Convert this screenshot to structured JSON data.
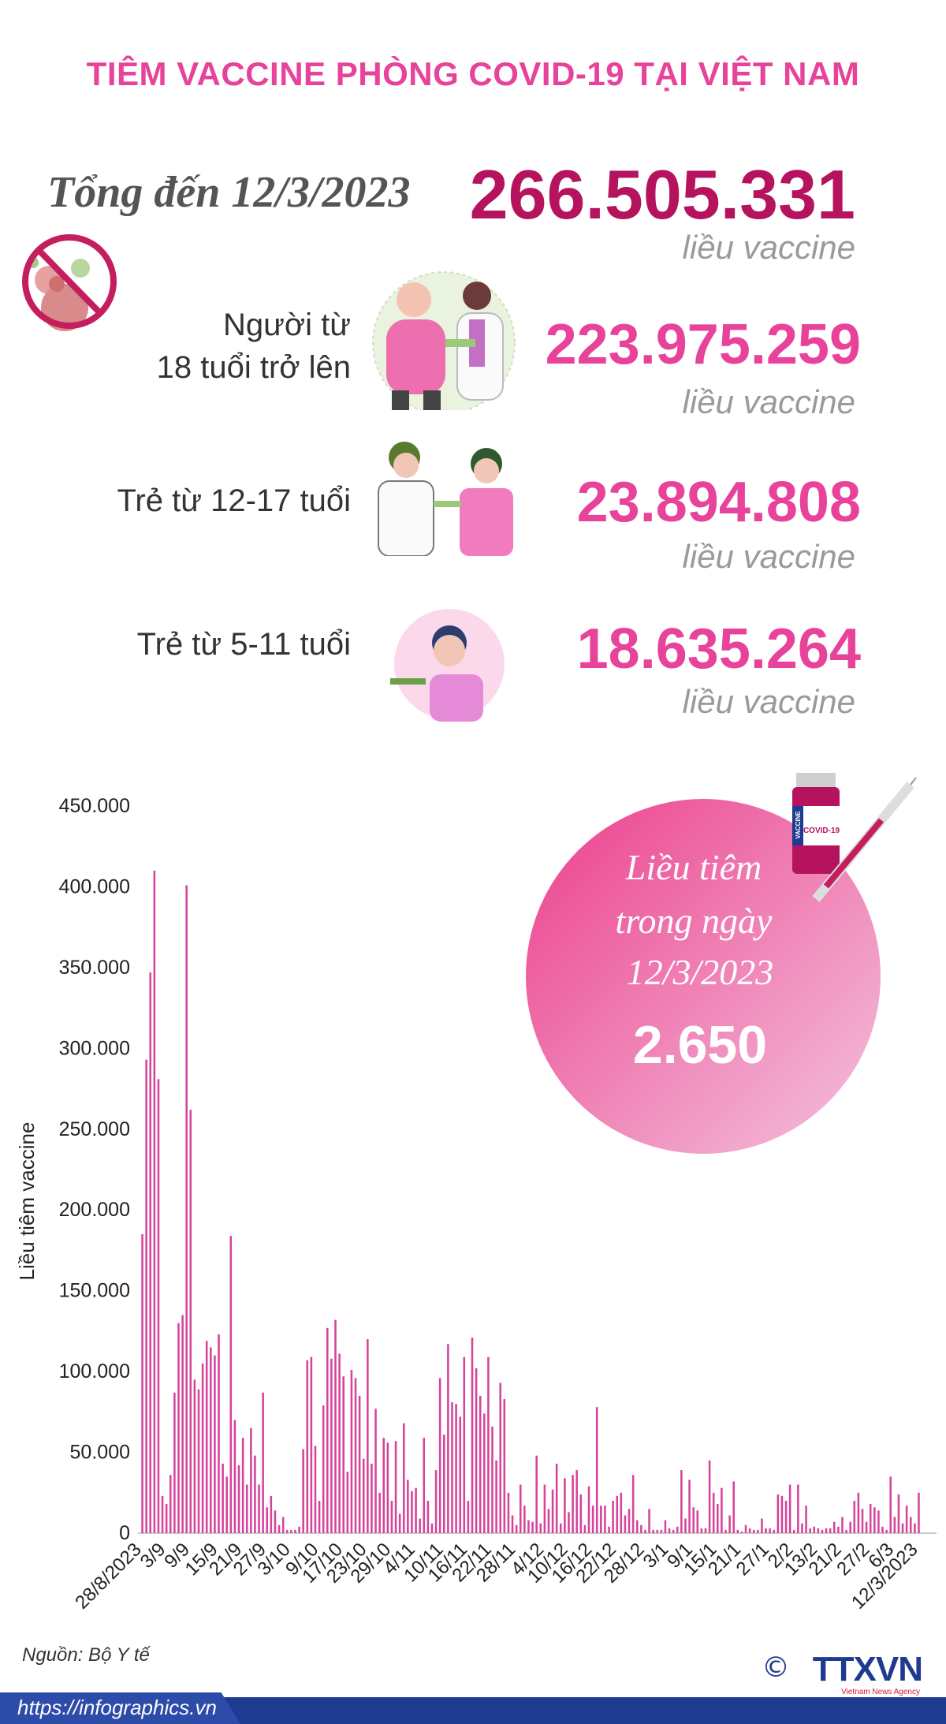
{
  "header": {
    "title": "TIÊM VACCINE PHÒNG COVID-19 TẠI VIỆT NAM"
  },
  "total": {
    "label": "Tổng đến 12/3/2023",
    "value": "266.505.331",
    "unit": "liều vaccine"
  },
  "groups": [
    {
      "label_line1": "Người từ",
      "label_line2": "18 tuổi trở lên",
      "value": "223.975.259",
      "unit": "liều vaccine"
    },
    {
      "label_line1": "Trẻ từ 12-17 tuổi",
      "label_line2": "",
      "value": "23.894.808",
      "unit": "liều vaccine"
    },
    {
      "label_line1": "Trẻ từ 5-11 tuổi",
      "label_line2": "",
      "value": "18.635.264",
      "unit": "liều vaccine"
    }
  ],
  "daily": {
    "line1": "Liều tiêm",
    "line2": "trong ngày",
    "line3": "12/3/2023",
    "value": "2.650",
    "vial_text": "COVID-19",
    "vial_side": "VACCINE"
  },
  "footer": {
    "source": "Nguồn: Bộ Y tế",
    "url": "https://infographics.vn",
    "brand": "TTXVN",
    "brand_sub": "Vietnam News Agency",
    "copyright": "©"
  },
  "colors": {
    "accent": "#e8439a",
    "dark_accent": "#b5135e",
    "bar": "#d6439a",
    "footer": "#1f3b8f"
  },
  "icons": [
    "no-virus-icon",
    "elderly-vaccination-icon",
    "teen-vaccination-icon",
    "child-vaccination-icon",
    "vaccine-syringe-icon"
  ],
  "chart_data": {
    "type": "bar",
    "ylabel": "Liều tiêm vaccine",
    "xlabel": "",
    "ylim": [
      0,
      450000
    ],
    "ytick_values": [
      0,
      50000,
      100000,
      150000,
      200000,
      250000,
      300000,
      350000,
      400000,
      450000
    ],
    "yticks": [
      "0",
      "50.000",
      "100.000",
      "150.000",
      "200.000",
      "250.000",
      "300.000",
      "350.000",
      "400.000",
      "450.000"
    ],
    "xtick_labels": [
      "28/8/2023",
      "3/9",
      "9/9",
      "15/9",
      "21/9",
      "27/9",
      "3/10",
      "9/10",
      "17/10",
      "23/10",
      "29/10",
      "4/11",
      "10/11",
      "16/11",
      "22/11",
      "28/11",
      "4/12",
      "10/12",
      "16/12",
      "22/12",
      "28/12",
      "3/1",
      "9/1",
      "15/1",
      "21/1",
      "27/1",
      "2/2",
      "13/2",
      "21/2",
      "27/2",
      "6/3",
      "12/3/2023"
    ],
    "values": [
      185000,
      293000,
      347000,
      410000,
      281000,
      23000,
      18000,
      36000,
      87000,
      130000,
      135000,
      401000,
      262000,
      95000,
      89000,
      105000,
      119000,
      115000,
      110000,
      123000,
      43000,
      35000,
      184000,
      70000,
      42000,
      59000,
      30000,
      65000,
      48000,
      30000,
      87000,
      16000,
      23000,
      14000,
      5000,
      10000,
      2000,
      2000,
      2000,
      4000,
      52000,
      107000,
      109000,
      54000,
      20000,
      79000,
      127000,
      108000,
      132000,
      111000,
      97000,
      38000,
      101000,
      96000,
      85000,
      46000,
      120000,
      43000,
      77000,
      25000,
      59000,
      56000,
      20000,
      57000,
      12000,
      68000,
      33000,
      26000,
      28000,
      9000,
      59000,
      20000,
      6000,
      39000,
      96000,
      61000,
      117000,
      81000,
      80000,
      72000,
      109000,
      20000,
      121000,
      102000,
      85000,
      74000,
      109000,
      66000,
      45000,
      93000,
      83000,
      25000,
      11000,
      5000,
      30000,
      17000,
      8000,
      7000,
      48000,
      6000,
      30000,
      15000,
      27000,
      43000,
      6000,
      34000,
      13000,
      36000,
      39000,
      24000,
      5000,
      29000,
      17000,
      78000,
      17000,
      17000,
      4000,
      20000,
      23000,
      25000,
      11000,
      15000,
      36000,
      8000,
      5000,
      2000,
      15000,
      2000,
      2000,
      2000,
      8000,
      3000,
      2000,
      4000,
      39000,
      9000,
      33000,
      16000,
      14000,
      3000,
      3000,
      45000,
      25000,
      18000,
      28000,
      2000,
      11000,
      32000,
      2000,
      1000,
      5000,
      3000,
      2000,
      2000,
      9000,
      3000,
      3000,
      2000,
      24000,
      23000,
      20000,
      30000,
      2000,
      30000,
      6000,
      17000,
      3000,
      4000,
      3000,
      2000,
      3000,
      3000,
      7000,
      4000,
      10000,
      2000,
      7000,
      20000,
      25000,
      15000,
      7000,
      18000,
      16000,
      14000,
      4000,
      2000,
      35000,
      10000,
      24000,
      6000,
      17000,
      10000,
      6000,
      25000
    ],
    "grid": false,
    "legend": "none"
  }
}
